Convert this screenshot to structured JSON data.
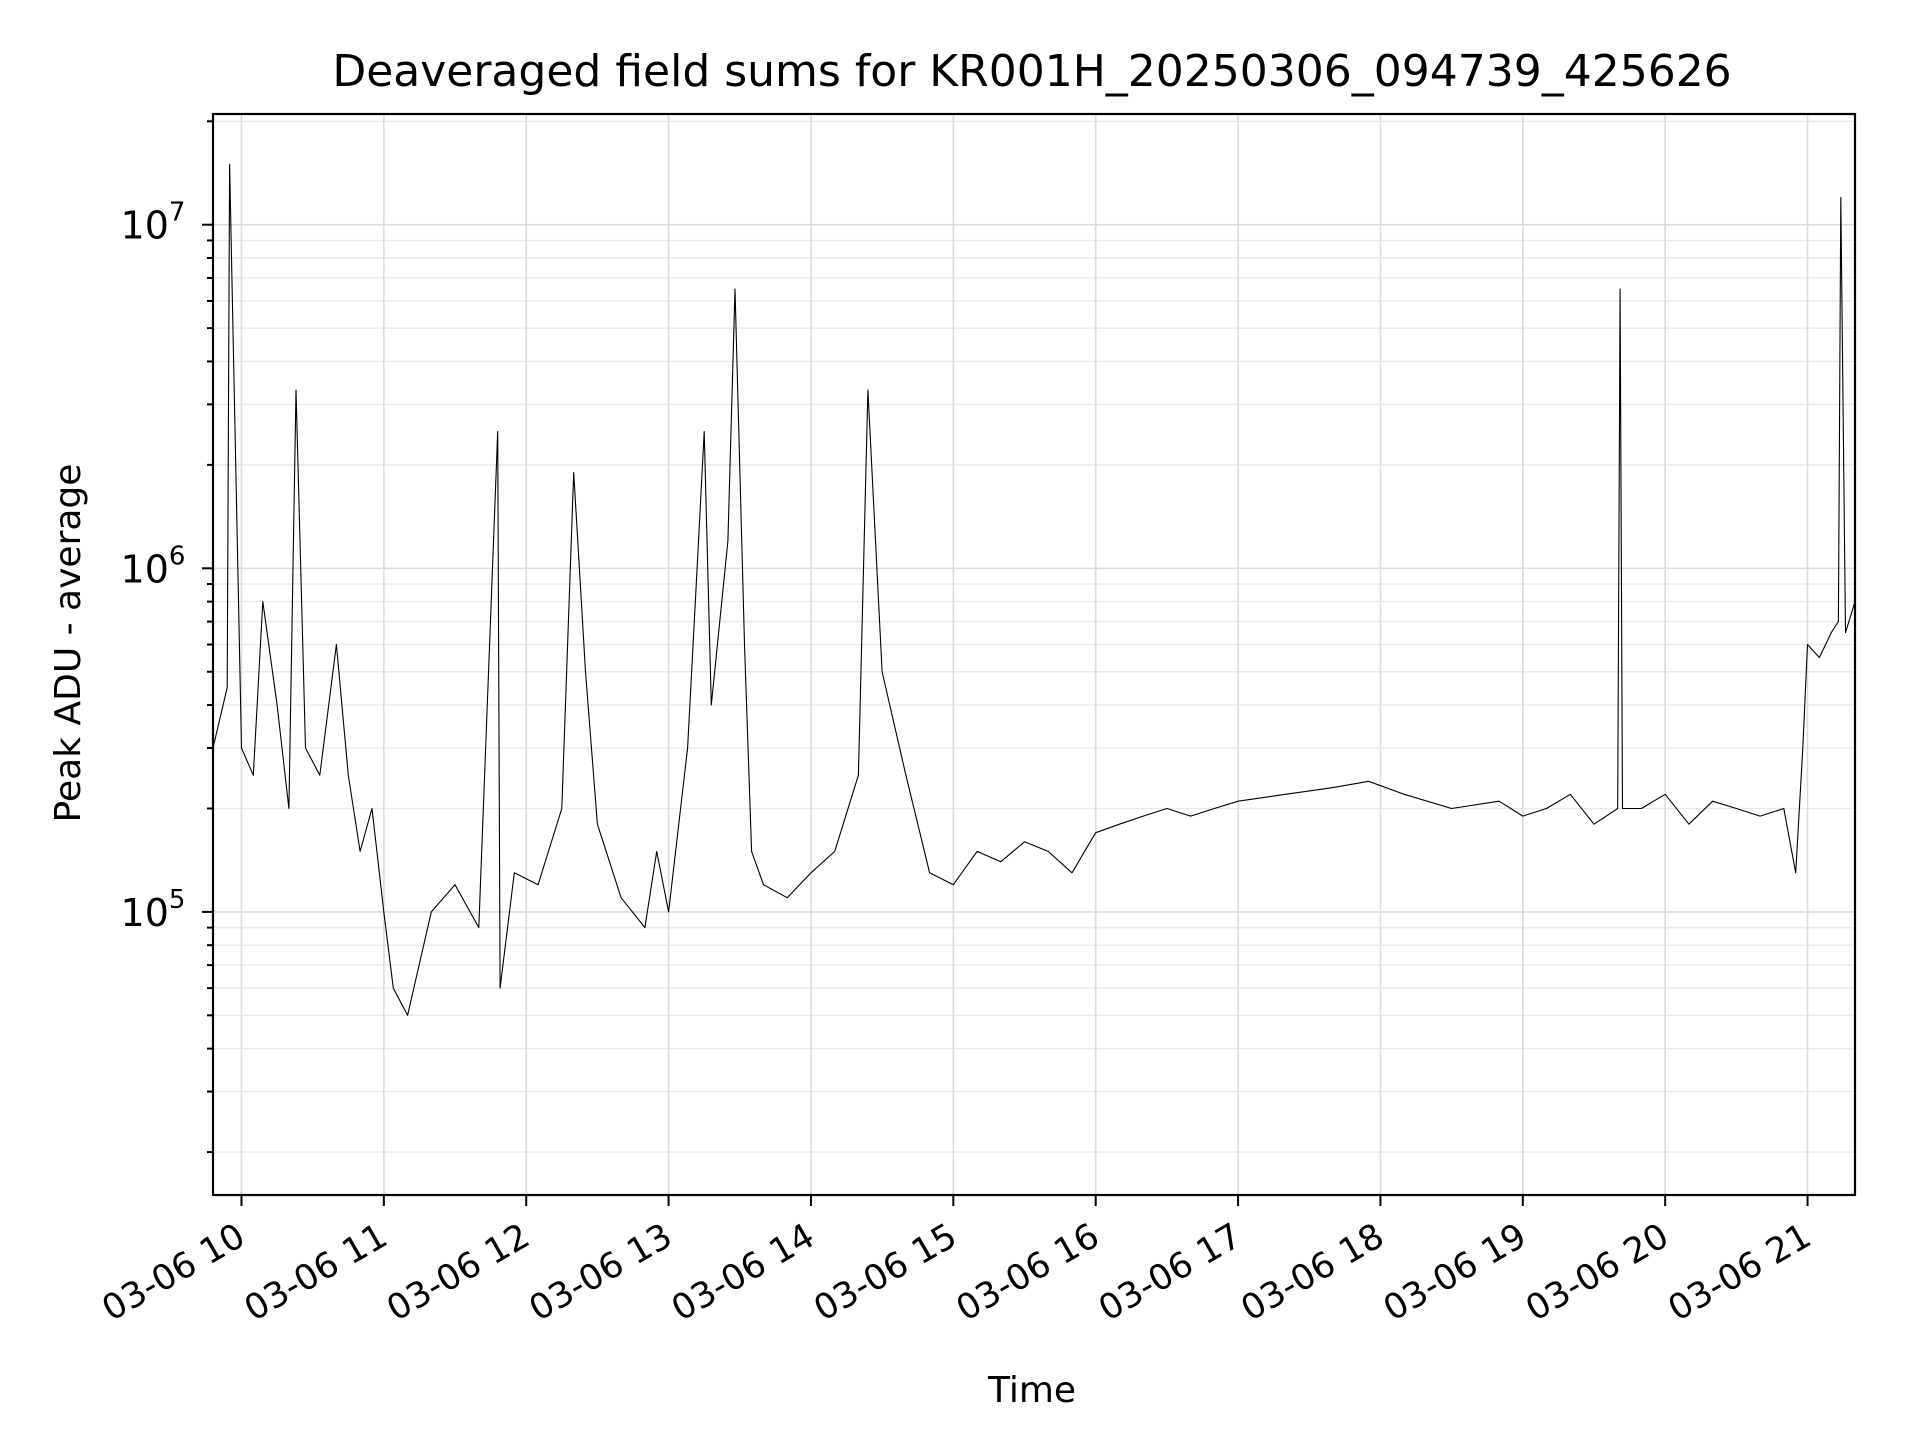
{
  "chart_data": {
    "type": "line",
    "title": "Deaveraged field sums for KR001H_20250306_094739_425626",
    "xlabel": "Time",
    "ylabel": "Peak ADU - average",
    "yscale": "log",
    "grid": true,
    "grid_minor": true,
    "xlim": [
      "2025-03-06T09:48",
      "2025-03-06T21:20"
    ],
    "ylim": [
      15000,
      21000000
    ],
    "x_ticks": [
      "2025-03-06T10:00",
      "2025-03-06T11:00",
      "2025-03-06T12:00",
      "2025-03-06T13:00",
      "2025-03-06T14:00",
      "2025-03-06T15:00",
      "2025-03-06T16:00",
      "2025-03-06T17:00",
      "2025-03-06T18:00",
      "2025-03-06T19:00",
      "2025-03-06T20:00",
      "2025-03-06T21:00"
    ],
    "x_tick_labels": [
      "03-06 10",
      "03-06 11",
      "03-06 12",
      "03-06 13",
      "03-06 14",
      "03-06 15",
      "03-06 16",
      "03-06 17",
      "03-06 18",
      "03-06 19",
      "03-06 20",
      "03-06 21"
    ],
    "y_ticks": [
      100000,
      1000000,
      10000000
    ],
    "y_tick_labels": [
      {
        "base": "10",
        "exp": "5"
      },
      {
        "base": "10",
        "exp": "6"
      },
      {
        "base": "10",
        "exp": "7"
      }
    ],
    "series": [
      {
        "color": "#000000",
        "x": [
          "2025-03-06T09:48",
          "2025-03-06T09:54",
          "2025-03-06T09:55",
          "2025-03-06T10:00",
          "2025-03-06T10:05",
          "2025-03-06T10:09",
          "2025-03-06T10:15",
          "2025-03-06T10:20",
          "2025-03-06T10:23",
          "2025-03-06T10:27",
          "2025-03-06T10:33",
          "2025-03-06T10:40",
          "2025-03-06T10:45",
          "2025-03-06T10:50",
          "2025-03-06T10:55",
          "2025-03-06T11:00",
          "2025-03-06T11:04",
          "2025-03-06T11:10",
          "2025-03-06T11:20",
          "2025-03-06T11:30",
          "2025-03-06T11:40",
          "2025-03-06T11:48",
          "2025-03-06T11:49",
          "2025-03-06T11:55",
          "2025-03-06T12:05",
          "2025-03-06T12:15",
          "2025-03-06T12:20",
          "2025-03-06T12:25",
          "2025-03-06T12:30",
          "2025-03-06T12:40",
          "2025-03-06T12:50",
          "2025-03-06T12:55",
          "2025-03-06T13:00",
          "2025-03-06T13:08",
          "2025-03-06T13:12",
          "2025-03-06T13:15",
          "2025-03-06T13:18",
          "2025-03-06T13:25",
          "2025-03-06T13:28",
          "2025-03-06T13:32",
          "2025-03-06T13:35",
          "2025-03-06T13:40",
          "2025-03-06T13:50",
          "2025-03-06T14:00",
          "2025-03-06T14:10",
          "2025-03-06T14:20",
          "2025-03-06T14:24",
          "2025-03-06T14:30",
          "2025-03-06T14:40",
          "2025-03-06T14:50",
          "2025-03-06T15:00",
          "2025-03-06T15:10",
          "2025-03-06T15:20",
          "2025-03-06T15:30",
          "2025-03-06T15:40",
          "2025-03-06T15:50",
          "2025-03-06T16:00",
          "2025-03-06T16:10",
          "2025-03-06T16:20",
          "2025-03-06T16:30",
          "2025-03-06T16:40",
          "2025-03-06T16:50",
          "2025-03-06T17:00",
          "2025-03-06T17:20",
          "2025-03-06T17:40",
          "2025-03-06T17:55",
          "2025-03-06T18:10",
          "2025-03-06T18:30",
          "2025-03-06T18:50",
          "2025-03-06T19:00",
          "2025-03-06T19:10",
          "2025-03-06T19:20",
          "2025-03-06T19:30",
          "2025-03-06T19:40",
          "2025-03-06T19:41",
          "2025-03-06T19:42",
          "2025-03-06T19:50",
          "2025-03-06T20:00",
          "2025-03-06T20:10",
          "2025-03-06T20:20",
          "2025-03-06T20:30",
          "2025-03-06T20:40",
          "2025-03-06T20:50",
          "2025-03-06T20:55",
          "2025-03-06T20:58",
          "2025-03-06T21:00",
          "2025-03-06T21:05",
          "2025-03-06T21:10",
          "2025-03-06T21:13",
          "2025-03-06T21:14",
          "2025-03-06T21:16",
          "2025-03-06T21:20"
        ],
        "y": [
          300000,
          450000,
          15000000,
          300000,
          250000,
          800000,
          400000,
          200000,
          3300000,
          300000,
          250000,
          600000,
          250000,
          150000,
          200000,
          100000,
          60000,
          50000,
          100000,
          120000,
          90000,
          2500000,
          60000,
          130000,
          120000,
          200000,
          1900000,
          500000,
          180000,
          110000,
          90000,
          150000,
          100000,
          300000,
          1000000,
          2500000,
          400000,
          1200000,
          6500000,
          600000,
          150000,
          120000,
          110000,
          130000,
          150000,
          250000,
          3300000,
          500000,
          250000,
          130000,
          120000,
          150000,
          140000,
          160000,
          150000,
          130000,
          170000,
          180000,
          190000,
          200000,
          190000,
          200000,
          210000,
          220000,
          230000,
          240000,
          220000,
          200000,
          210000,
          190000,
          200000,
          220000,
          180000,
          200000,
          6500000,
          200000,
          200000,
          220000,
          180000,
          210000,
          200000,
          190000,
          200000,
          130000,
          300000,
          600000,
          550000,
          650000,
          700000,
          12000000,
          650000,
          800000
        ]
      }
    ]
  }
}
